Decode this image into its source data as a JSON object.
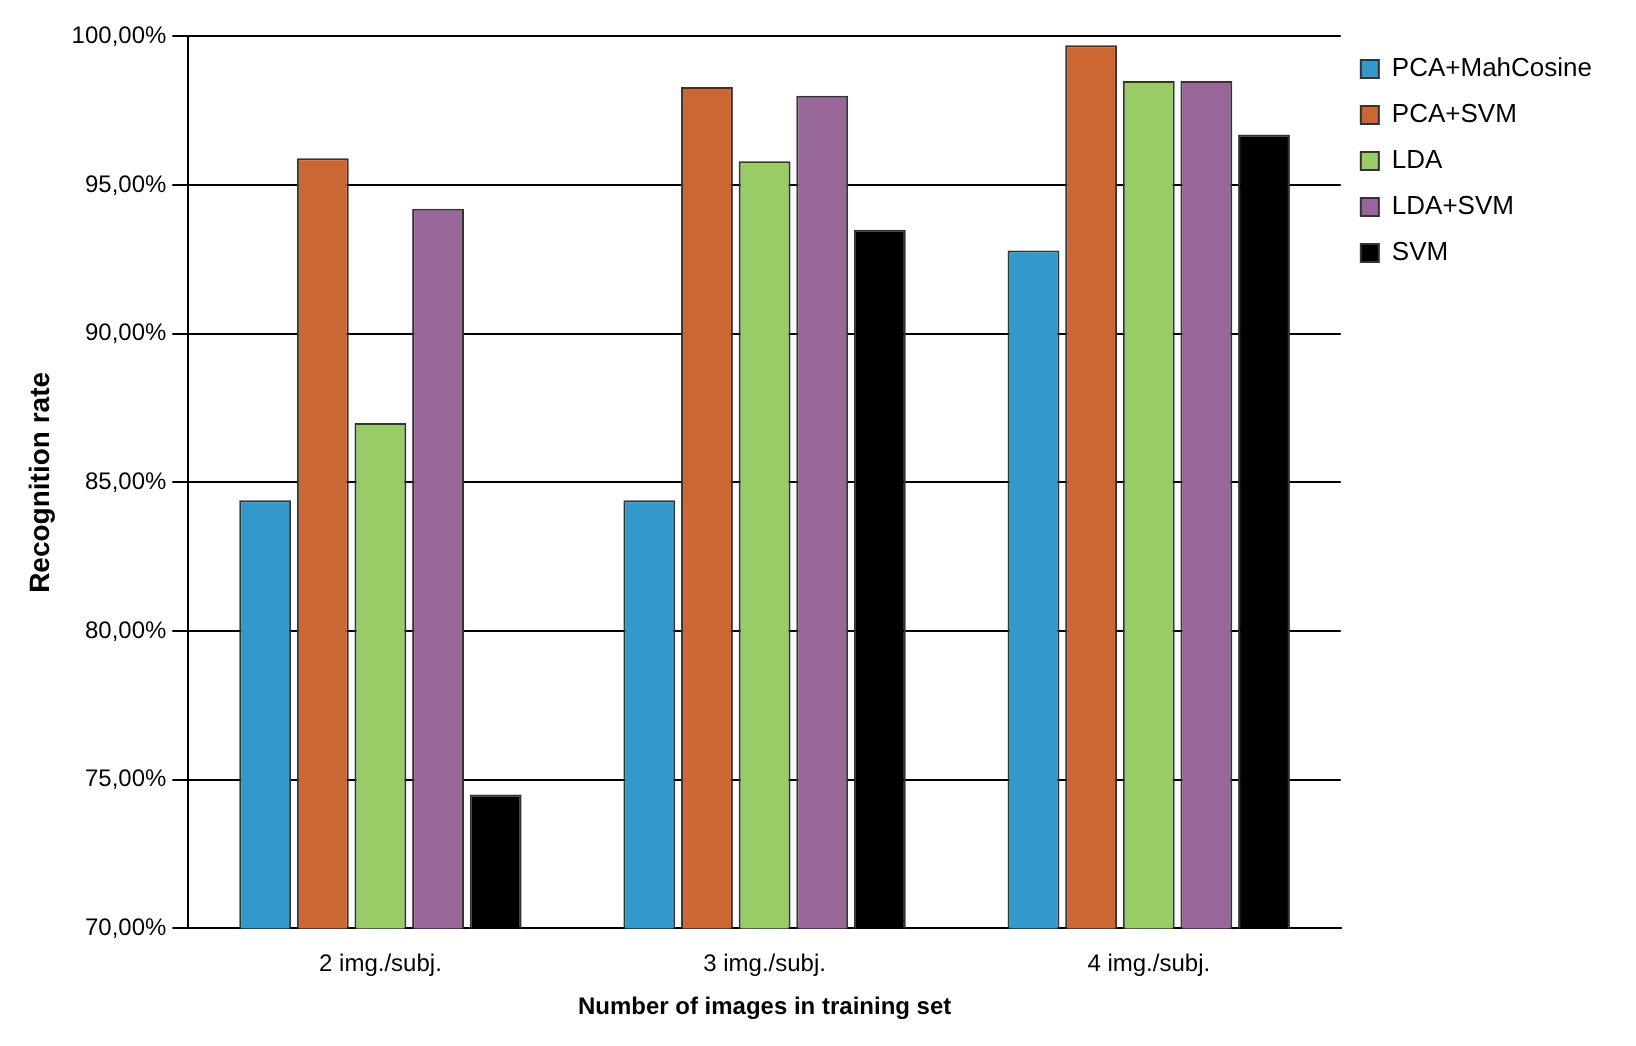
{
  "chart_data": {
    "type": "bar",
    "xlabel": "Number of images in training set",
    "ylabel": "Recognition rate",
    "categories": [
      "2 img./subj.",
      "3 img./subj.",
      "4 img./subj."
    ],
    "series": [
      {
        "name": "PCA+MahCosine",
        "color": "#3399cc",
        "values": [
          84.4,
          84.4,
          92.8
        ]
      },
      {
        "name": "PCA+SVM",
        "color": "#cc6633",
        "values": [
          95.9,
          98.3,
          99.7
        ]
      },
      {
        "name": "LDA",
        "color": "#99cc66",
        "values": [
          87.0,
          95.8,
          98.5
        ]
      },
      {
        "name": "LDA+SVM",
        "color": "#996699",
        "values": [
          94.2,
          98.0,
          98.5
        ]
      },
      {
        "name": "SVM",
        "color": "#000000",
        "values": [
          74.5,
          93.5,
          96.7
        ]
      }
    ],
    "ylim": [
      70,
      100
    ],
    "yticks": [
      {
        "value": 70,
        "label": "70,00%"
      },
      {
        "value": 75,
        "label": "75,00%"
      },
      {
        "value": 80,
        "label": "80,00%"
      },
      {
        "value": 85,
        "label": "85,00%"
      },
      {
        "value": 90,
        "label": "90,00%"
      },
      {
        "value": 95,
        "label": "95,00%"
      },
      {
        "value": 100,
        "label": "100,00%"
      }
    ],
    "grid": "y",
    "legend": "top right"
  }
}
